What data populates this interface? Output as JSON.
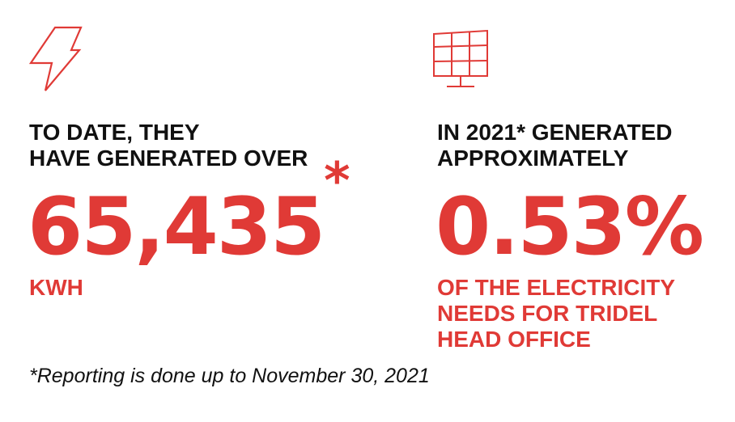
{
  "colors": {
    "accent": "#e03a36",
    "text": "#111111"
  },
  "left": {
    "icon": "lightning-bolt-icon",
    "heading_line1": "TO DATE, THEY",
    "heading_line2": "HAVE GENERATED OVER",
    "value": "65,435",
    "value_mark": "*",
    "unit": "KWH"
  },
  "right": {
    "icon": "solar-panel-icon",
    "heading_line1": "IN 2021* GENERATED",
    "heading_line2": "APPROXIMATELY",
    "value": "0.53%",
    "detail_line1": "OF THE ELECTRICITY",
    "detail_line2": "NEEDS FOR TRIDEL",
    "detail_line3": "HEAD OFFICE"
  },
  "footnote": "*Reporting is done up to November 30, 2021"
}
